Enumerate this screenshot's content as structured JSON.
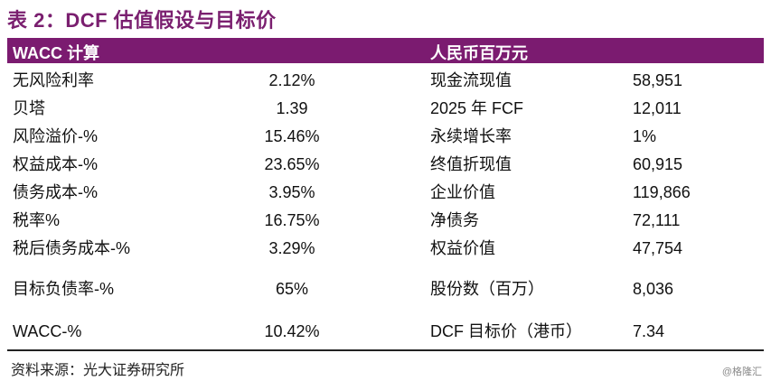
{
  "title": "表 2：DCF 估值假设与目标价",
  "header": {
    "left": "WACC 计算",
    "right": "人民币百万元"
  },
  "rows": [
    {
      "c1": "无风险利率",
      "c2": "2.12%",
      "c3": "现金流现值",
      "c4": "58,951"
    },
    {
      "c1": "贝塔",
      "c2": "1.39",
      "c3": "2025 年 FCF",
      "c4": "12,011"
    },
    {
      "c1": "风险溢价-%",
      "c2": "15.46%",
      "c3": "永续增长率",
      "c4": "1%"
    },
    {
      "c1": "权益成本-%",
      "c2": "23.65%",
      "c3": "终值折现值",
      "c4": "60,915"
    },
    {
      "c1": "债务成本-%",
      "c2": "3.95%",
      "c3": "企业价值",
      "c4": "119,866"
    },
    {
      "c1": "税率%",
      "c2": "16.75%",
      "c3": "净债务",
      "c4": "72,111"
    },
    {
      "c1": "税后债务成本-%",
      "c2": "3.29%",
      "c3": "权益价值",
      "c4": "47,754"
    },
    {
      "c1": "目标负债率-%",
      "c2": "65%",
      "c3": "股份数（百万）",
      "c4": "8,036"
    },
    {
      "c1": "WACC-%",
      "c2": "10.42%",
      "c3": "DCF 目标价（港币）",
      "c4": "7.34"
    }
  ],
  "source": "资料来源：光大证券研究所",
  "watermark": "@格隆汇"
}
